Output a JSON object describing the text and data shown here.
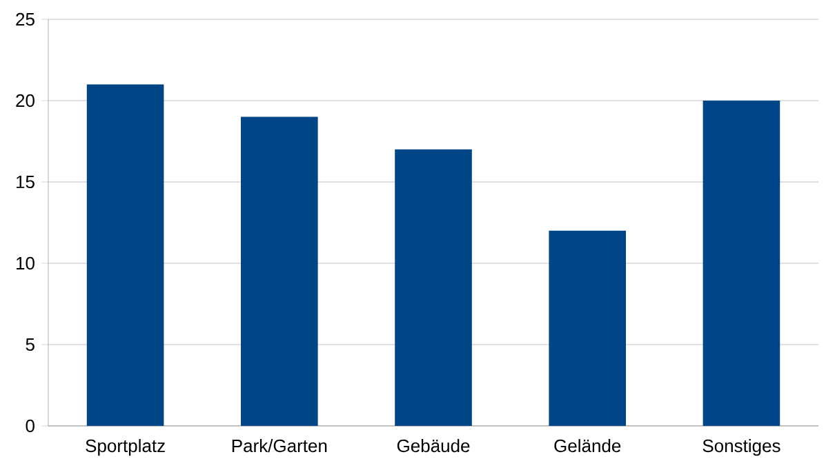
{
  "chart_data": {
    "type": "bar",
    "categories": [
      "Sportplatz",
      "Park/Garten",
      "Gebäude",
      "Gelände",
      "Sonstiges"
    ],
    "values": [
      21,
      19,
      17,
      12,
      20
    ],
    "color": "#004586",
    "ylim": [
      0,
      25
    ],
    "yticks": [
      0,
      5,
      10,
      15,
      20,
      25
    ],
    "grid": "y"
  }
}
